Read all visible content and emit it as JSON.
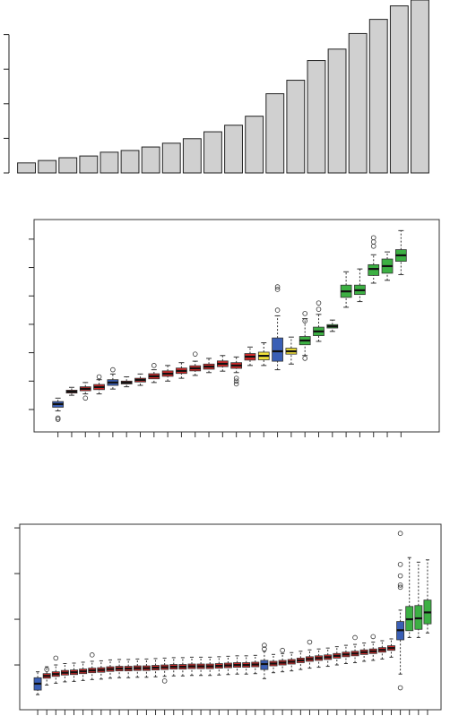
{
  "chart_data": [
    {
      "type": "bar",
      "color": "#d0d0d0",
      "categories": [
        null,
        null,
        null,
        null,
        null,
        null,
        null,
        null,
        null,
        null,
        null,
        null,
        null,
        null,
        null,
        null,
        null,
        null,
        null,
        null
      ],
      "values": [
        0.29,
        0.36,
        0.44,
        0.49,
        0.6,
        0.65,
        0.75,
        0.86,
        0.99,
        1.19,
        1.38,
        1.64,
        2.29,
        2.68,
        3.25,
        3.58,
        4.03,
        4.44,
        4.83,
        5.0
      ],
      "ylim": [
        0,
        5.0
      ],
      "yticks": [
        0,
        1,
        2,
        3,
        4
      ]
    },
    {
      "type": "box",
      "categories": [
        null,
        null,
        null,
        null,
        null,
        null,
        null,
        null,
        null,
        null,
        null,
        null,
        null,
        null,
        null,
        null,
        null,
        null,
        null,
        null,
        null,
        null,
        null,
        null,
        null,
        null
      ],
      "min": [
        -0.05,
        0.5,
        0.55,
        0.55,
        0.72,
        0.8,
        0.85,
        0.95,
        1.0,
        1.1,
        1.2,
        1.3,
        1.35,
        1.3,
        1.55,
        1.55,
        1.4,
        1.6,
        1.9,
        2.4,
        2.75,
        3.6,
        3.8,
        4.45,
        4.55,
        4.75
      ],
      "q1": [
        0.08,
        0.58,
        0.66,
        0.7,
        0.85,
        0.9,
        0.97,
        1.08,
        1.17,
        1.27,
        1.36,
        1.42,
        1.51,
        1.45,
        1.74,
        1.75,
        1.7,
        1.95,
        2.28,
        2.6,
        2.87,
        3.95,
        4.05,
        4.72,
        4.8,
        5.22
      ],
      "median": [
        0.19,
        0.63,
        0.73,
        0.79,
        0.95,
        0.95,
        1.04,
        1.17,
        1.26,
        1.36,
        1.45,
        1.51,
        1.61,
        1.55,
        1.86,
        1.89,
        2.05,
        2.05,
        2.43,
        2.75,
        2.93,
        4.16,
        4.2,
        4.95,
        5.05,
        5.43
      ],
      "q3": [
        0.28,
        0.68,
        0.8,
        0.88,
        1.05,
        1.0,
        1.1,
        1.26,
        1.36,
        1.46,
        1.54,
        1.6,
        1.71,
        1.65,
        1.97,
        2.02,
        2.52,
        2.16,
        2.57,
        2.9,
        2.99,
        4.38,
        4.38,
        5.1,
        5.3,
        5.63
      ],
      "max": [
        0.4,
        0.78,
        0.95,
        1.05,
        1.25,
        1.15,
        1.25,
        1.4,
        1.55,
        1.65,
        1.7,
        1.8,
        1.9,
        1.85,
        2.2,
        2.35,
        3.3,
        2.55,
        3.2,
        3.35,
        3.15,
        4.85,
        4.95,
        5.45,
        5.55,
        6.3
      ],
      "outliers": [
        [
          -0.3,
          -0.35
        ],
        [],
        [
          0.4
        ],
        [
          1.15
        ],
        [
          1.4
        ],
        [],
        [],
        [
          1.55
        ],
        [],
        [],
        [
          1.95
        ],
        [],
        [],
        [
          0.9,
          1.0,
          1.1
        ],
        [],
        [],
        [
          3.5,
          4.23,
          4.32
        ],
        [],
        [
          1.8,
          3.12,
          3.38
        ],
        [
          3.53,
          3.75
        ],
        [],
        [],
        [],
        [
          5.75,
          5.9,
          6.05
        ],
        [],
        []
      ],
      "colors": [
        "#3a5fb5",
        "#d42a2a",
        "#d42a2a",
        "#d42a2a",
        "#3a5fb5",
        "#d42a2a",
        "#d42a2a",
        "#d42a2a",
        "#d42a2a",
        "#d42a2a",
        "#d42a2a",
        "#d42a2a",
        "#d42a2a",
        "#d42a2a",
        "#d42a2a",
        "#f0e03a",
        "#3a5fb5",
        "#f0e03a",
        "#3cb043",
        "#3cb043",
        "#3cb043",
        "#3cb043",
        "#3cb043",
        "#3cb043",
        "#3cb043",
        "#3cb043"
      ],
      "ylim": [
        -0.79,
        6.69
      ],
      "yticks": [
        0,
        1,
        2,
        3,
        4,
        5,
        6
      ]
    },
    {
      "type": "box",
      "categories": [
        null,
        null,
        null,
        null,
        null,
        null,
        null,
        null,
        null,
        null,
        null,
        null,
        null,
        null,
        null,
        null,
        null,
        null,
        null,
        null,
        null,
        null,
        null,
        null,
        null,
        null,
        null,
        null,
        null,
        null,
        null,
        null,
        null,
        null,
        null,
        null,
        null,
        null,
        null,
        null,
        null,
        null,
        null,
        null
      ],
      "min": [
        -0.65,
        -0.44,
        -0.4,
        -0.37,
        -0.36,
        -0.34,
        -0.32,
        -0.31,
        -0.29,
        -0.28,
        -0.28,
        -0.27,
        -0.27,
        -0.26,
        -0.25,
        -0.24,
        -0.24,
        -0.23,
        -0.23,
        -0.23,
        -0.22,
        -0.21,
        -0.2,
        -0.2,
        -0.19,
        -0.3,
        -0.17,
        -0.15,
        -0.13,
        -0.1,
        -0.07,
        -0.05,
        -0.03,
        0.0,
        0.03,
        0.05,
        0.08,
        0.1,
        0.13,
        0.17,
        -0.2,
        0.6,
        0.6,
        0.7
      ],
      "q1": [
        -0.55,
        -0.29,
        -0.25,
        -0.22,
        -0.21,
        -0.19,
        -0.17,
        -0.16,
        -0.14,
        -0.13,
        -0.13,
        -0.12,
        -0.12,
        -0.11,
        -0.1,
        -0.09,
        -0.09,
        -0.08,
        -0.08,
        -0.08,
        -0.07,
        -0.06,
        -0.05,
        -0.05,
        -0.04,
        -0.1,
        -0.02,
        0.0,
        0.02,
        0.05,
        0.08,
        0.1,
        0.12,
        0.15,
        0.18,
        0.2,
        0.23,
        0.25,
        0.28,
        0.32,
        0.55,
        0.75,
        0.78,
        0.9
      ],
      "median": [
        -0.41,
        -0.24,
        -0.2,
        -0.17,
        -0.16,
        -0.14,
        -0.12,
        -0.11,
        -0.09,
        -0.08,
        -0.08,
        -0.07,
        -0.07,
        -0.06,
        -0.05,
        -0.04,
        -0.04,
        -0.03,
        -0.03,
        -0.03,
        -0.02,
        -0.01,
        0.0,
        0.0,
        0.01,
        0.02,
        0.03,
        0.05,
        0.07,
        0.1,
        0.13,
        0.15,
        0.17,
        0.2,
        0.23,
        0.25,
        0.28,
        0.3,
        0.33,
        0.37,
        0.76,
        1.0,
        1.02,
        1.15
      ],
      "q3": [
        -0.28,
        -0.19,
        -0.15,
        -0.12,
        -0.11,
        -0.09,
        -0.07,
        -0.06,
        -0.04,
        -0.03,
        -0.03,
        -0.02,
        -0.02,
        -0.01,
        0.0,
        0.01,
        0.01,
        0.02,
        0.02,
        0.02,
        0.03,
        0.04,
        0.05,
        0.05,
        0.06,
        0.1,
        0.08,
        0.1,
        0.12,
        0.15,
        0.18,
        0.2,
        0.22,
        0.25,
        0.28,
        0.3,
        0.33,
        0.35,
        0.38,
        0.42,
        0.95,
        1.28,
        1.3,
        1.42
      ],
      "max": [
        -0.15,
        -0.04,
        0.0,
        0.03,
        0.04,
        0.06,
        0.08,
        0.09,
        0.11,
        0.12,
        0.12,
        0.13,
        0.13,
        0.14,
        0.15,
        0.16,
        0.16,
        0.17,
        0.17,
        0.17,
        0.18,
        0.19,
        0.2,
        0.2,
        0.21,
        0.3,
        0.23,
        0.25,
        0.27,
        0.3,
        0.33,
        0.35,
        0.37,
        0.4,
        0.43,
        0.45,
        0.48,
        0.5,
        0.53,
        0.57,
        1.2,
        2.35,
        2.25,
        2.3
      ],
      "outliers": [
        [],
        [
          -0.1
        ],
        [
          0.15
        ],
        [],
        [],
        [],
        [
          0.22
        ],
        [],
        [],
        [],
        [],
        [],
        [],
        [],
        [
          -0.35
        ],
        [],
        [],
        [],
        [],
        [],
        [],
        [],
        [],
        [],
        [],
        [
          0.35,
          0.43
        ],
        [],
        [
          0.32
        ],
        [],
        [],
        [
          0.5
        ],
        [],
        [],
        [],
        [],
        [
          0.6
        ],
        [],
        [
          0.62
        ],
        [],
        [],
        [
          -0.5,
          1.7,
          1.75,
          1.95,
          2.2,
          2.88
        ],
        [],
        [],
        []
      ],
      "colors": [
        "#3a5fb5",
        "#d42a2a",
        "#d42a2a",
        "#d42a2a",
        "#d42a2a",
        "#d42a2a",
        "#d42a2a",
        "#d42a2a",
        "#d42a2a",
        "#d42a2a",
        "#d42a2a",
        "#d42a2a",
        "#d42a2a",
        "#d42a2a",
        "#d42a2a",
        "#d42a2a",
        "#d42a2a",
        "#d42a2a",
        "#d42a2a",
        "#d42a2a",
        "#d42a2a",
        "#d42a2a",
        "#d42a2a",
        "#d42a2a",
        "#d42a2a",
        "#3a5fb5",
        "#d42a2a",
        "#d42a2a",
        "#d42a2a",
        "#d42a2a",
        "#d42a2a",
        "#d42a2a",
        "#d42a2a",
        "#d42a2a",
        "#d42a2a",
        "#d42a2a",
        "#d42a2a",
        "#d42a2a",
        "#d42a2a",
        "#d42a2a",
        "#3a5fb5",
        "#3cb043",
        "#3cb043",
        "#3cb043"
      ],
      "ylim": [
        -0.98,
        3.08
      ],
      "yticks": [
        0,
        1,
        2,
        3
      ]
    }
  ]
}
